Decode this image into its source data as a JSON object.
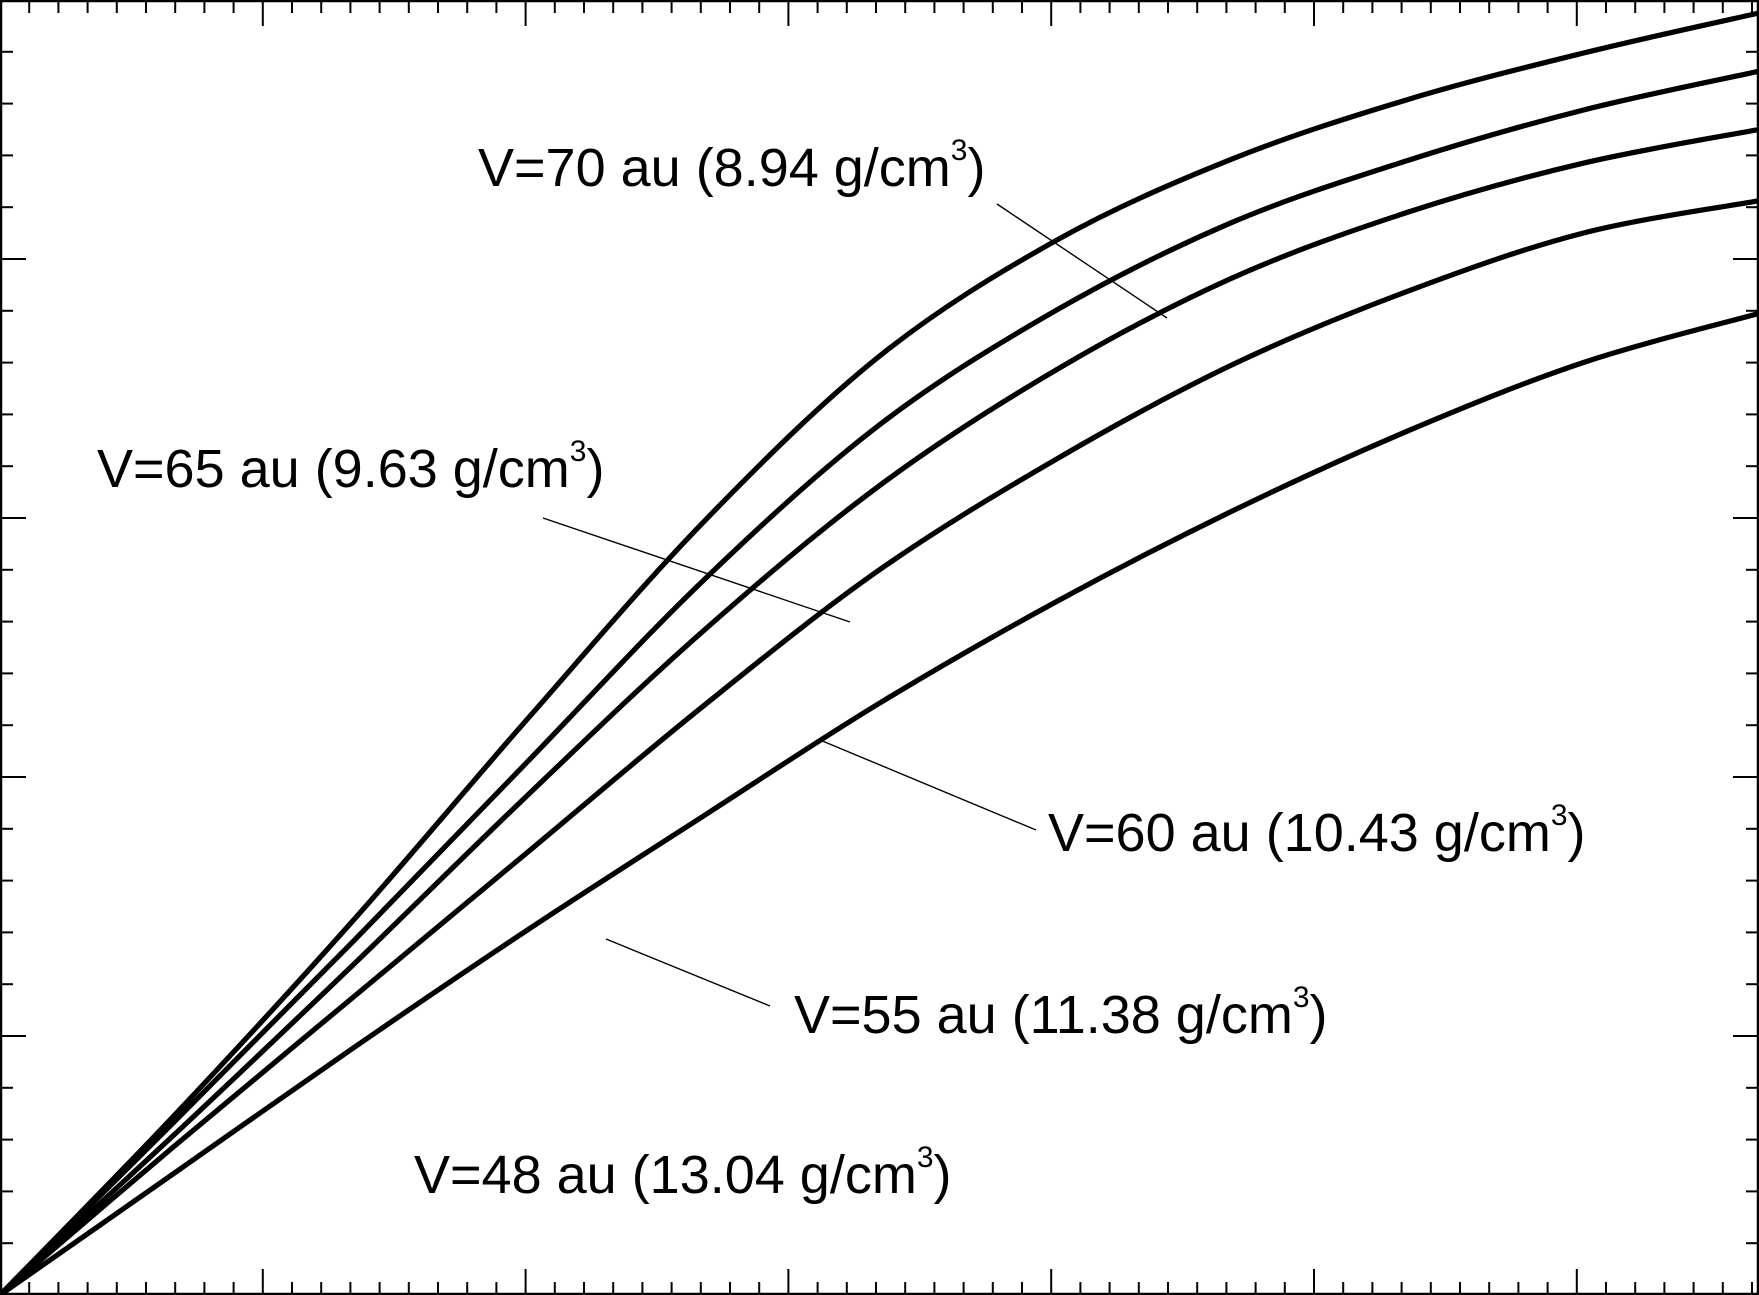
{
  "chart_data": {
    "type": "line",
    "title": "",
    "xlabel": "",
    "ylabel": "",
    "xlim": [
      0,
      1
    ],
    "ylim": [
      0,
      1
    ],
    "grid": false,
    "legend": "none",
    "series": [
      {
        "name": "V=70 au (8.94 g/cm³)",
        "x": [
          0,
          0.1,
          0.2,
          0.3,
          0.4,
          0.5,
          0.6,
          0.7,
          0.8,
          0.9,
          1.0
        ],
        "y": [
          0,
          0.14,
          0.288,
          0.445,
          0.597,
          0.725,
          0.814,
          0.877,
          0.923,
          0.959,
          0.99
        ]
      },
      {
        "name": "V=65 au (9.63 g/cm³)",
        "x": [
          0,
          0.1,
          0.2,
          0.3,
          0.4,
          0.5,
          0.6,
          0.7,
          0.8,
          0.9,
          1.0
        ],
        "y": [
          0,
          0.135,
          0.272,
          0.412,
          0.552,
          0.672,
          0.76,
          0.828,
          0.876,
          0.915,
          0.945
        ]
      },
      {
        "name": "V=60 au (10.43 g/cm³)",
        "x": [
          0,
          0.1,
          0.2,
          0.3,
          0.4,
          0.5,
          0.6,
          0.7,
          0.8,
          0.9,
          1.0
        ],
        "y": [
          0,
          0.125,
          0.254,
          0.386,
          0.513,
          0.625,
          0.714,
          0.785,
          0.836,
          0.874,
          0.9
        ]
      },
      {
        "name": "V=55 au (11.38 g/cm³)",
        "x": [
          0,
          0.1,
          0.2,
          0.3,
          0.4,
          0.5,
          0.6,
          0.7,
          0.8,
          0.9,
          1.0
        ],
        "y": [
          0,
          0.116,
          0.229,
          0.342,
          0.455,
          0.56,
          0.645,
          0.718,
          0.775,
          0.82,
          0.845
        ]
      },
      {
        "name": "V=48 au (13.04 g/cm³)",
        "x": [
          0,
          0.1,
          0.2,
          0.3,
          0.4,
          0.5,
          0.6,
          0.7,
          0.8,
          0.9,
          1.0
        ],
        "y": [
          0,
          0.095,
          0.19,
          0.282,
          0.37,
          0.457,
          0.535,
          0.605,
          0.667,
          0.72,
          0.758
        ]
      }
    ],
    "annotations": [
      {
        "text": "V=70 au (8.94 g/cm",
        "sup": "3",
        "close": ")"
      },
      {
        "text": "V=65 au (9.63 g/cm",
        "sup": "3",
        "close": ")"
      },
      {
        "text": "V=60 au (10.43 g/cm",
        "sup": "3",
        "close": ")"
      },
      {
        "text": "V=55 au (11.38 g/cm",
        "sup": "3",
        "close": ")"
      },
      {
        "text": "V=48 au (13.04 g/cm",
        "sup": "3",
        "close": ")"
      }
    ]
  }
}
